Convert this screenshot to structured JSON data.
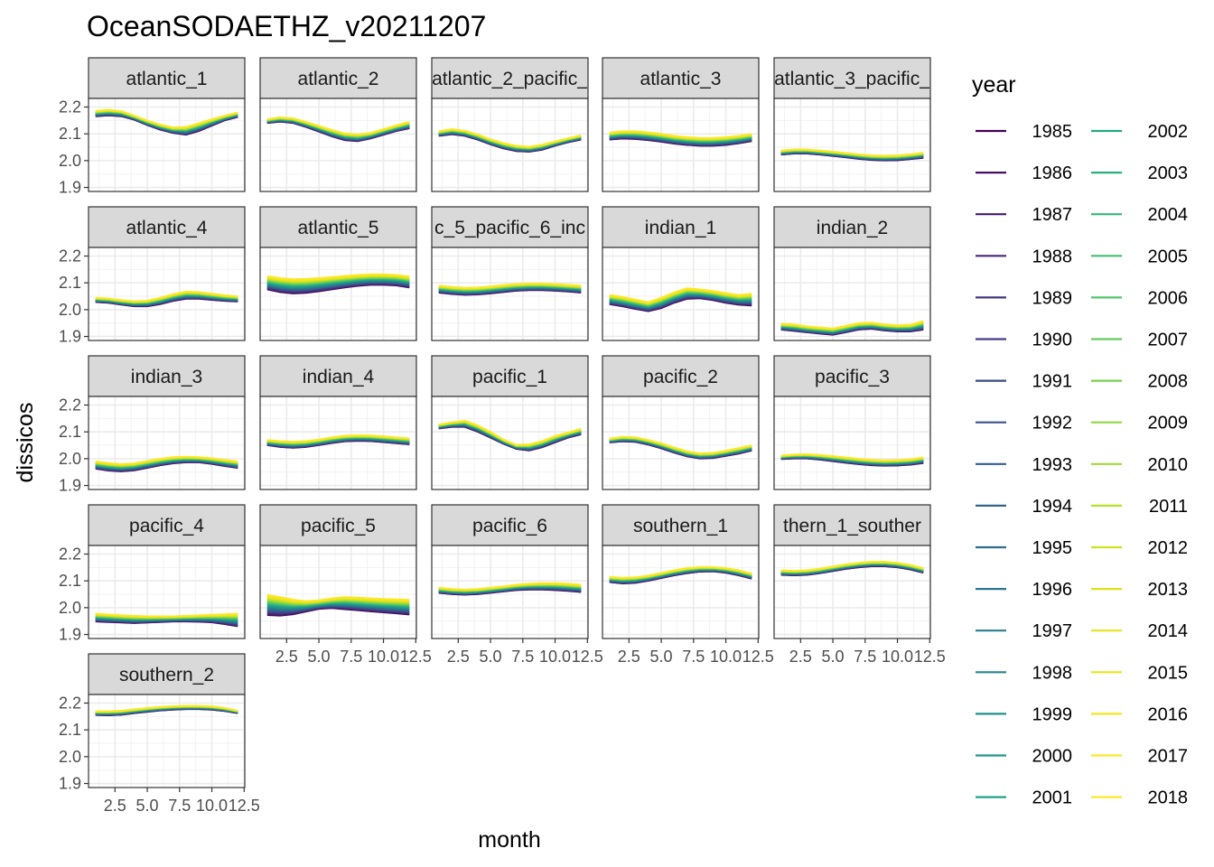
{
  "chart_data": {
    "type": "line",
    "title": "OceanSODAETHZ_v20211207",
    "xlabel": "month",
    "ylabel": "dissicos",
    "ylim": [
      1.9,
      2.2
    ],
    "xlim": [
      1,
      12
    ],
    "y_ticks": [
      "1.9",
      "2.0",
      "2.1",
      "2.2"
    ],
    "x_ticks": [
      "2.5",
      "5.0",
      "7.5",
      "10.0",
      "12.5"
    ],
    "x_tick_values": [
      2.5,
      5.0,
      7.5,
      10.0,
      12.5
    ],
    "y_tick_values": [
      1.9,
      2.0,
      2.1,
      2.2
    ],
    "grid": true,
    "legend_title": "year",
    "legend_placement": "right",
    "years": [
      1985,
      1986,
      1987,
      1988,
      1989,
      1990,
      1991,
      1992,
      1993,
      1994,
      1995,
      1996,
      1997,
      1998,
      1999,
      2000,
      2001,
      2002,
      2003,
      2004,
      2005,
      2006,
      2007,
      2008,
      2009,
      2010,
      2011,
      2012,
      2013,
      2014,
      2015,
      2016,
      2017,
      2018
    ],
    "months": [
      1,
      2,
      3,
      4,
      5,
      6,
      7,
      8,
      9,
      10,
      11,
      12
    ],
    "colors": [
      "#440154",
      "#470e61",
      "#481b6d",
      "#482777",
      "#463480",
      "#433e85",
      "#3f4888",
      "#3b528b",
      "#365c8d",
      "#32648e",
      "#2e6d8e",
      "#2a768e",
      "#277f8e",
      "#24878e",
      "#21908d",
      "#1f988b",
      "#1fa188",
      "#22a884",
      "#2ab07f",
      "#35b779",
      "#43bf71",
      "#54c568",
      "#65cb5e",
      "#79d151",
      "#8fd744",
      "#a2da37",
      "#b8de29",
      "#cde11d",
      "#dde318",
      "#e6e419",
      "#eee51c",
      "#f5e620",
      "#fde725",
      "#fde725"
    ],
    "panels": [
      {
        "name": "atlantic_1",
        "first": [
          2.165,
          2.168,
          2.165,
          2.152,
          2.132,
          2.115,
          2.103,
          2.096,
          2.11,
          2.13,
          2.15,
          2.162
        ],
        "last": [
          2.186,
          2.19,
          2.185,
          2.168,
          2.15,
          2.135,
          2.124,
          2.126,
          2.14,
          2.155,
          2.168,
          2.18
        ]
      },
      {
        "name": "atlantic_2",
        "first": [
          2.14,
          2.145,
          2.14,
          2.125,
          2.108,
          2.09,
          2.076,
          2.072,
          2.082,
          2.096,
          2.11,
          2.12
        ],
        "last": [
          2.155,
          2.162,
          2.158,
          2.145,
          2.13,
          2.115,
          2.102,
          2.098,
          2.104,
          2.118,
          2.132,
          2.145
        ]
      },
      {
        "name": "atlantic_2_pacific_",
        "first": [
          2.092,
          2.098,
          2.092,
          2.078,
          2.06,
          2.045,
          2.035,
          2.033,
          2.04,
          2.055,
          2.068,
          2.078
        ],
        "last": [
          2.11,
          2.118,
          2.112,
          2.098,
          2.08,
          2.066,
          2.056,
          2.052,
          2.06,
          2.072,
          2.084,
          2.095
        ]
      },
      {
        "name": "atlantic_3",
        "first": [
          2.078,
          2.082,
          2.08,
          2.076,
          2.07,
          2.063,
          2.058,
          2.055,
          2.055,
          2.058,
          2.064,
          2.072
        ],
        "last": [
          2.105,
          2.11,
          2.11,
          2.106,
          2.1,
          2.093,
          2.088,
          2.085,
          2.085,
          2.088,
          2.093,
          2.1
        ]
      },
      {
        "name": "atlantic_3_pacific_",
        "first": [
          2.022,
          2.026,
          2.026,
          2.022,
          2.017,
          2.012,
          2.006,
          2.002,
          2.0,
          2.001,
          2.005,
          2.01
        ],
        "last": [
          2.038,
          2.042,
          2.042,
          2.038,
          2.034,
          2.029,
          2.024,
          2.02,
          2.019,
          2.02,
          2.024,
          2.03
        ]
      },
      {
        "name": "atlantic_4",
        "first": [
          2.028,
          2.025,
          2.018,
          2.012,
          2.012,
          2.02,
          2.032,
          2.04,
          2.04,
          2.036,
          2.032,
          2.03
        ],
        "last": [
          2.045,
          2.042,
          2.036,
          2.032,
          2.034,
          2.045,
          2.058,
          2.068,
          2.066,
          2.06,
          2.054,
          2.05
        ]
      },
      {
        "name": "atlantic_5",
        "first": [
          2.075,
          2.065,
          2.06,
          2.062,
          2.068,
          2.075,
          2.082,
          2.088,
          2.092,
          2.092,
          2.09,
          2.082
        ],
        "last": [
          2.125,
          2.118,
          2.114,
          2.115,
          2.118,
          2.122,
          2.126,
          2.13,
          2.132,
          2.132,
          2.13,
          2.124
        ]
      },
      {
        "name": "c_5_pacific_6_inc",
        "first": [
          2.063,
          2.058,
          2.055,
          2.056,
          2.06,
          2.065,
          2.07,
          2.072,
          2.072,
          2.07,
          2.067,
          2.063
        ],
        "last": [
          2.09,
          2.085,
          2.082,
          2.083,
          2.087,
          2.092,
          2.096,
          2.098,
          2.098,
          2.096,
          2.093,
          2.09
        ]
      },
      {
        "name": "indian_1",
        "first": [
          2.02,
          2.012,
          2.002,
          1.994,
          2.005,
          2.025,
          2.04,
          2.042,
          2.035,
          2.025,
          2.018,
          2.015
        ],
        "last": [
          2.055,
          2.048,
          2.038,
          2.028,
          2.045,
          2.065,
          2.08,
          2.076,
          2.07,
          2.062,
          2.055,
          2.06
        ]
      },
      {
        "name": "indian_2",
        "first": [
          1.925,
          1.92,
          1.915,
          1.91,
          1.906,
          1.915,
          1.925,
          1.928,
          1.922,
          1.918,
          1.918,
          1.925
        ],
        "last": [
          1.948,
          1.945,
          1.938,
          1.934,
          1.93,
          1.94,
          1.95,
          1.952,
          1.945,
          1.942,
          1.944,
          1.958
        ]
      },
      {
        "name": "indian_3",
        "first": [
          1.962,
          1.955,
          1.952,
          1.956,
          1.965,
          1.975,
          1.982,
          1.986,
          1.986,
          1.98,
          1.972,
          1.965
        ],
        "last": [
          1.99,
          1.984,
          1.98,
          1.983,
          1.992,
          2.0,
          2.006,
          2.008,
          2.006,
          2.002,
          1.996,
          1.99
        ]
      },
      {
        "name": "indian_4",
        "first": [
          2.05,
          2.043,
          2.04,
          2.043,
          2.05,
          2.058,
          2.064,
          2.066,
          2.065,
          2.061,
          2.057,
          2.053
        ],
        "last": [
          2.07,
          2.066,
          2.064,
          2.066,
          2.072,
          2.08,
          2.086,
          2.088,
          2.087,
          2.084,
          2.08,
          2.076
        ]
      },
      {
        "name": "pacific_1",
        "first": [
          2.112,
          2.118,
          2.118,
          2.1,
          2.078,
          2.055,
          2.036,
          2.03,
          2.042,
          2.06,
          2.078,
          2.09
        ],
        "last": [
          2.128,
          2.136,
          2.142,
          2.125,
          2.1,
          2.072,
          2.052,
          2.054,
          2.066,
          2.085,
          2.098,
          2.112
        ]
      },
      {
        "name": "pacific_2",
        "first": [
          2.06,
          2.064,
          2.062,
          2.052,
          2.038,
          2.022,
          2.008,
          2.0,
          2.002,
          2.01,
          2.018,
          2.03
        ],
        "last": [
          2.075,
          2.082,
          2.08,
          2.07,
          2.058,
          2.042,
          2.028,
          2.02,
          2.022,
          2.03,
          2.04,
          2.05
        ]
      },
      {
        "name": "pacific_3",
        "first": [
          1.998,
          2.0,
          2.0,
          1.996,
          1.99,
          1.984,
          1.979,
          1.975,
          1.973,
          1.974,
          1.977,
          1.983
        ],
        "last": [
          2.012,
          2.016,
          2.017,
          2.014,
          2.01,
          2.005,
          2.0,
          1.996,
          1.994,
          1.995,
          1.998,
          2.005
        ]
      },
      {
        "name": "pacific_4",
        "first": [
          1.948,
          1.946,
          1.944,
          1.942,
          1.944,
          1.946,
          1.948,
          1.948,
          1.947,
          1.945,
          1.938,
          1.93
        ],
        "last": [
          1.978,
          1.975,
          1.972,
          1.97,
          1.968,
          1.968,
          1.968,
          1.97,
          1.972,
          1.974,
          1.976,
          1.978
        ]
      },
      {
        "name": "pacific_5",
        "first": [
          1.972,
          1.97,
          1.975,
          1.985,
          1.995,
          1.998,
          1.994,
          1.99,
          1.986,
          1.982,
          1.978,
          1.974
        ],
        "last": [
          2.048,
          2.04,
          2.03,
          2.025,
          2.028,
          2.035,
          2.04,
          2.038,
          2.035,
          2.033,
          2.032,
          2.03
        ]
      },
      {
        "name": "pacific_6",
        "first": [
          2.055,
          2.05,
          2.048,
          2.05,
          2.055,
          2.06,
          2.065,
          2.067,
          2.067,
          2.065,
          2.062,
          2.058
        ],
        "last": [
          2.075,
          2.07,
          2.068,
          2.07,
          2.075,
          2.08,
          2.086,
          2.09,
          2.092,
          2.092,
          2.09,
          2.086
        ]
      },
      {
        "name": "southern_1",
        "first": [
          2.095,
          2.09,
          2.092,
          2.1,
          2.11,
          2.12,
          2.128,
          2.134,
          2.135,
          2.13,
          2.12,
          2.108
        ],
        "last": [
          2.115,
          2.112,
          2.114,
          2.12,
          2.13,
          2.14,
          2.148,
          2.152,
          2.152,
          2.148,
          2.14,
          2.128
        ]
      },
      {
        "name": "thern_1_souther",
        "first": [
          2.122,
          2.12,
          2.122,
          2.128,
          2.136,
          2.144,
          2.15,
          2.154,
          2.154,
          2.15,
          2.142,
          2.13
        ],
        "last": [
          2.14,
          2.138,
          2.14,
          2.146,
          2.154,
          2.162,
          2.168,
          2.172,
          2.172,
          2.168,
          2.16,
          2.148
        ]
      },
      {
        "name": "southern_2",
        "first": [
          2.155,
          2.154,
          2.156,
          2.162,
          2.167,
          2.172,
          2.175,
          2.177,
          2.177,
          2.175,
          2.17,
          2.162
        ],
        "last": [
          2.17,
          2.17,
          2.172,
          2.177,
          2.182,
          2.186,
          2.189,
          2.19,
          2.19,
          2.188,
          2.182,
          2.172
        ]
      }
    ]
  }
}
